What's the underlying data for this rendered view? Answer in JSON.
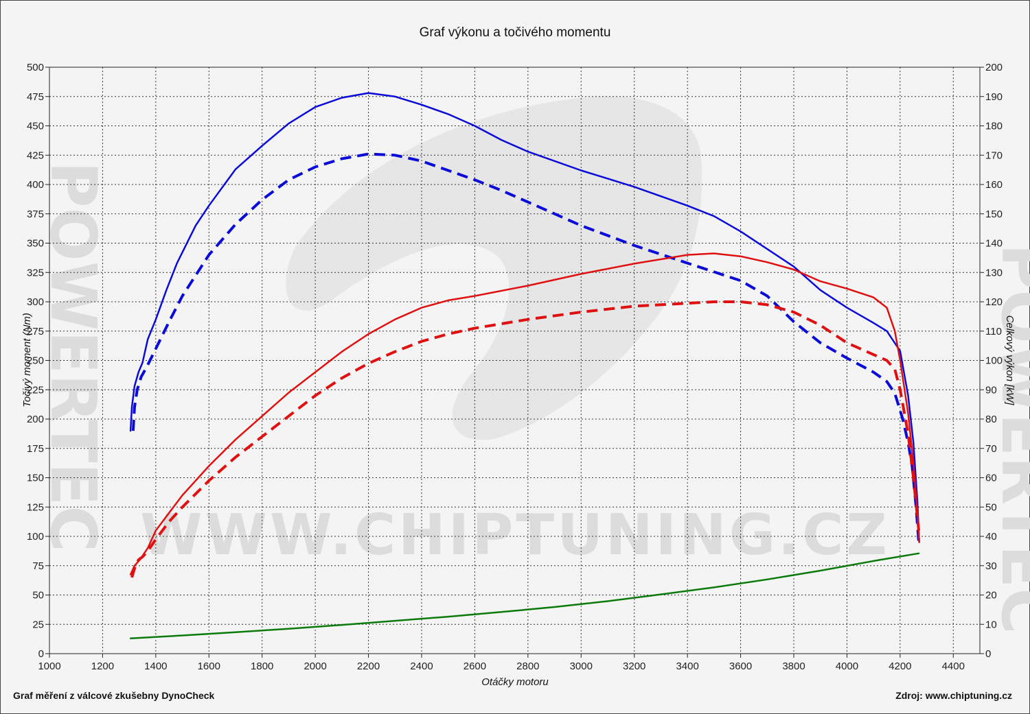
{
  "footer": {
    "left": "Graf měření z válcové zkušebny DynoCheck",
    "right": "Zdroj: www.chiptuning.cz"
  },
  "watermark": {
    "url": "WWW.CHIPTUNING.CZ",
    "side": "POWERTEC"
  },
  "colors": {
    "background": "#f4f4f4",
    "grid": "#333333",
    "blue": "#0b0bd9",
    "red": "#e01010",
    "green": "#0a7a0a",
    "watermark": "#dcdcdc"
  },
  "chart_data": {
    "type": "line",
    "title": "Graf výkonu a točivého momentu",
    "xlabel": "Otáčky motoru",
    "ylabel": "Točivý moment (Nm)",
    "y2label": "Celkový výkon [kW]",
    "xlim": [
      1000,
      4500
    ],
    "ylim": [
      0,
      500
    ],
    "y2lim": [
      0,
      200
    ],
    "grid": true,
    "x_ticks": [
      1000,
      1200,
      1400,
      1600,
      1800,
      2000,
      2200,
      2400,
      2600,
      2800,
      3000,
      3200,
      3400,
      3600,
      3800,
      4000,
      4200,
      4400
    ],
    "y_ticks": [
      0,
      25,
      50,
      75,
      100,
      125,
      150,
      175,
      200,
      225,
      250,
      275,
      300,
      325,
      350,
      375,
      400,
      425,
      450,
      475,
      500
    ],
    "y2_ticks": [
      0,
      10,
      20,
      30,
      40,
      50,
      60,
      70,
      80,
      90,
      100,
      110,
      120,
      130,
      140,
      150,
      160,
      170,
      180,
      190,
      200
    ],
    "series": [
      {
        "name": "",
        "axis": "left",
        "color": "#0b0bd9",
        "style": "solid",
        "points": [
          [
            1305,
            190
          ],
          [
            1310,
            210
          ],
          [
            1320,
            228
          ],
          [
            1335,
            240
          ],
          [
            1350,
            248
          ],
          [
            1370,
            268
          ],
          [
            1400,
            285
          ],
          [
            1440,
            310
          ],
          [
            1480,
            333
          ],
          [
            1550,
            365
          ],
          [
            1600,
            382
          ],
          [
            1700,
            413
          ],
          [
            1800,
            433
          ],
          [
            1900,
            452
          ],
          [
            2000,
            466
          ],
          [
            2100,
            474
          ],
          [
            2200,
            478
          ],
          [
            2300,
            475
          ],
          [
            2400,
            468
          ],
          [
            2500,
            460
          ],
          [
            2600,
            450
          ],
          [
            2700,
            438
          ],
          [
            2800,
            428
          ],
          [
            3000,
            412
          ],
          [
            3200,
            398
          ],
          [
            3400,
            382
          ],
          [
            3500,
            373
          ],
          [
            3600,
            360
          ],
          [
            3800,
            330
          ],
          [
            3900,
            310
          ],
          [
            4000,
            295
          ],
          [
            4100,
            282
          ],
          [
            4150,
            275
          ],
          [
            4200,
            258
          ],
          [
            4230,
            220
          ],
          [
            4250,
            180
          ],
          [
            4265,
            130
          ],
          [
            4272,
            95
          ]
        ]
      },
      {
        "name": "",
        "axis": "left",
        "color": "#0b0bd9",
        "style": "dashed",
        "points": [
          [
            1315,
            190
          ],
          [
            1320,
            210
          ],
          [
            1330,
            225
          ],
          [
            1345,
            236
          ],
          [
            1365,
            244
          ],
          [
            1400,
            260
          ],
          [
            1450,
            283
          ],
          [
            1500,
            305
          ],
          [
            1600,
            340
          ],
          [
            1700,
            366
          ],
          [
            1800,
            387
          ],
          [
            1900,
            404
          ],
          [
            2000,
            415
          ],
          [
            2100,
            422
          ],
          [
            2200,
            426
          ],
          [
            2300,
            425
          ],
          [
            2400,
            420
          ],
          [
            2500,
            412
          ],
          [
            2600,
            404
          ],
          [
            2700,
            395
          ],
          [
            2800,
            385
          ],
          [
            3000,
            365
          ],
          [
            3200,
            348
          ],
          [
            3400,
            333
          ],
          [
            3600,
            318
          ],
          [
            3700,
            305
          ],
          [
            3800,
            283
          ],
          [
            3900,
            265
          ],
          [
            4000,
            252
          ],
          [
            4100,
            240
          ],
          [
            4150,
            232
          ],
          [
            4180,
            222
          ],
          [
            4210,
            200
          ],
          [
            4230,
            180
          ],
          [
            4245,
            160
          ],
          [
            4260,
            125
          ],
          [
            4270,
            95
          ]
        ]
      },
      {
        "name": "",
        "axis": "right",
        "color": "#e01010",
        "style": "solid",
        "points": [
          [
            1305,
            27
          ],
          [
            1320,
            30
          ],
          [
            1340,
            32
          ],
          [
            1370,
            36
          ],
          [
            1400,
            42
          ],
          [
            1450,
            48
          ],
          [
            1500,
            54
          ],
          [
            1550,
            59
          ],
          [
            1600,
            64
          ],
          [
            1700,
            73
          ],
          [
            1800,
            81
          ],
          [
            1900,
            89
          ],
          [
            2000,
            96
          ],
          [
            2100,
            103
          ],
          [
            2200,
            109
          ],
          [
            2300,
            114
          ],
          [
            2400,
            118
          ],
          [
            2500,
            120.5
          ],
          [
            2600,
            122
          ],
          [
            2800,
            125.5
          ],
          [
            3000,
            129.5
          ],
          [
            3200,
            133
          ],
          [
            3400,
            136
          ],
          [
            3500,
            136.5
          ],
          [
            3600,
            135.5
          ],
          [
            3700,
            133.5
          ],
          [
            3800,
            131
          ],
          [
            3900,
            127
          ],
          [
            4000,
            124.5
          ],
          [
            4100,
            121.5
          ],
          [
            4150,
            118
          ],
          [
            4180,
            110
          ],
          [
            4200,
            100
          ],
          [
            4230,
            82
          ],
          [
            4250,
            65
          ],
          [
            4265,
            48
          ],
          [
            4272,
            38
          ]
        ]
      },
      {
        "name": "",
        "axis": "right",
        "color": "#e01010",
        "style": "dashed",
        "points": [
          [
            1310,
            26
          ],
          [
            1320,
            29
          ],
          [
            1335,
            32
          ],
          [
            1350,
            33
          ],
          [
            1370,
            35
          ],
          [
            1400,
            39
          ],
          [
            1450,
            45
          ],
          [
            1500,
            50
          ],
          [
            1600,
            59
          ],
          [
            1700,
            67
          ],
          [
            1800,
            74
          ],
          [
            1900,
            81
          ],
          [
            2000,
            88
          ],
          [
            2100,
            94
          ],
          [
            2200,
            99
          ],
          [
            2300,
            103
          ],
          [
            2400,
            106.5
          ],
          [
            2500,
            109
          ],
          [
            2600,
            111
          ],
          [
            2700,
            112.5
          ],
          [
            2800,
            114
          ],
          [
            3000,
            116.5
          ],
          [
            3200,
            118.5
          ],
          [
            3400,
            119.5
          ],
          [
            3500,
            120
          ],
          [
            3600,
            120
          ],
          [
            3700,
            119
          ],
          [
            3800,
            116.5
          ],
          [
            3900,
            112
          ],
          [
            4000,
            106
          ],
          [
            4100,
            102
          ],
          [
            4150,
            100
          ],
          [
            4180,
            97
          ],
          [
            4200,
            90
          ],
          [
            4230,
            75
          ],
          [
            4250,
            60
          ],
          [
            4270,
            42
          ]
        ]
      },
      {
        "name": "",
        "axis": "right",
        "color": "#0a7a0a",
        "style": "solid",
        "points": [
          [
            1305,
            5.2
          ],
          [
            1500,
            6.2
          ],
          [
            1700,
            7.3
          ],
          [
            1900,
            8.5
          ],
          [
            2100,
            9.8
          ],
          [
            2300,
            11.2
          ],
          [
            2500,
            12.6
          ],
          [
            2700,
            14.2
          ],
          [
            2900,
            15.9
          ],
          [
            3100,
            17.9
          ],
          [
            3300,
            20.2
          ],
          [
            3500,
            22.6
          ],
          [
            3700,
            25.3
          ],
          [
            3900,
            28.3
          ],
          [
            4100,
            31.6
          ],
          [
            4270,
            34.2
          ]
        ]
      }
    ]
  }
}
